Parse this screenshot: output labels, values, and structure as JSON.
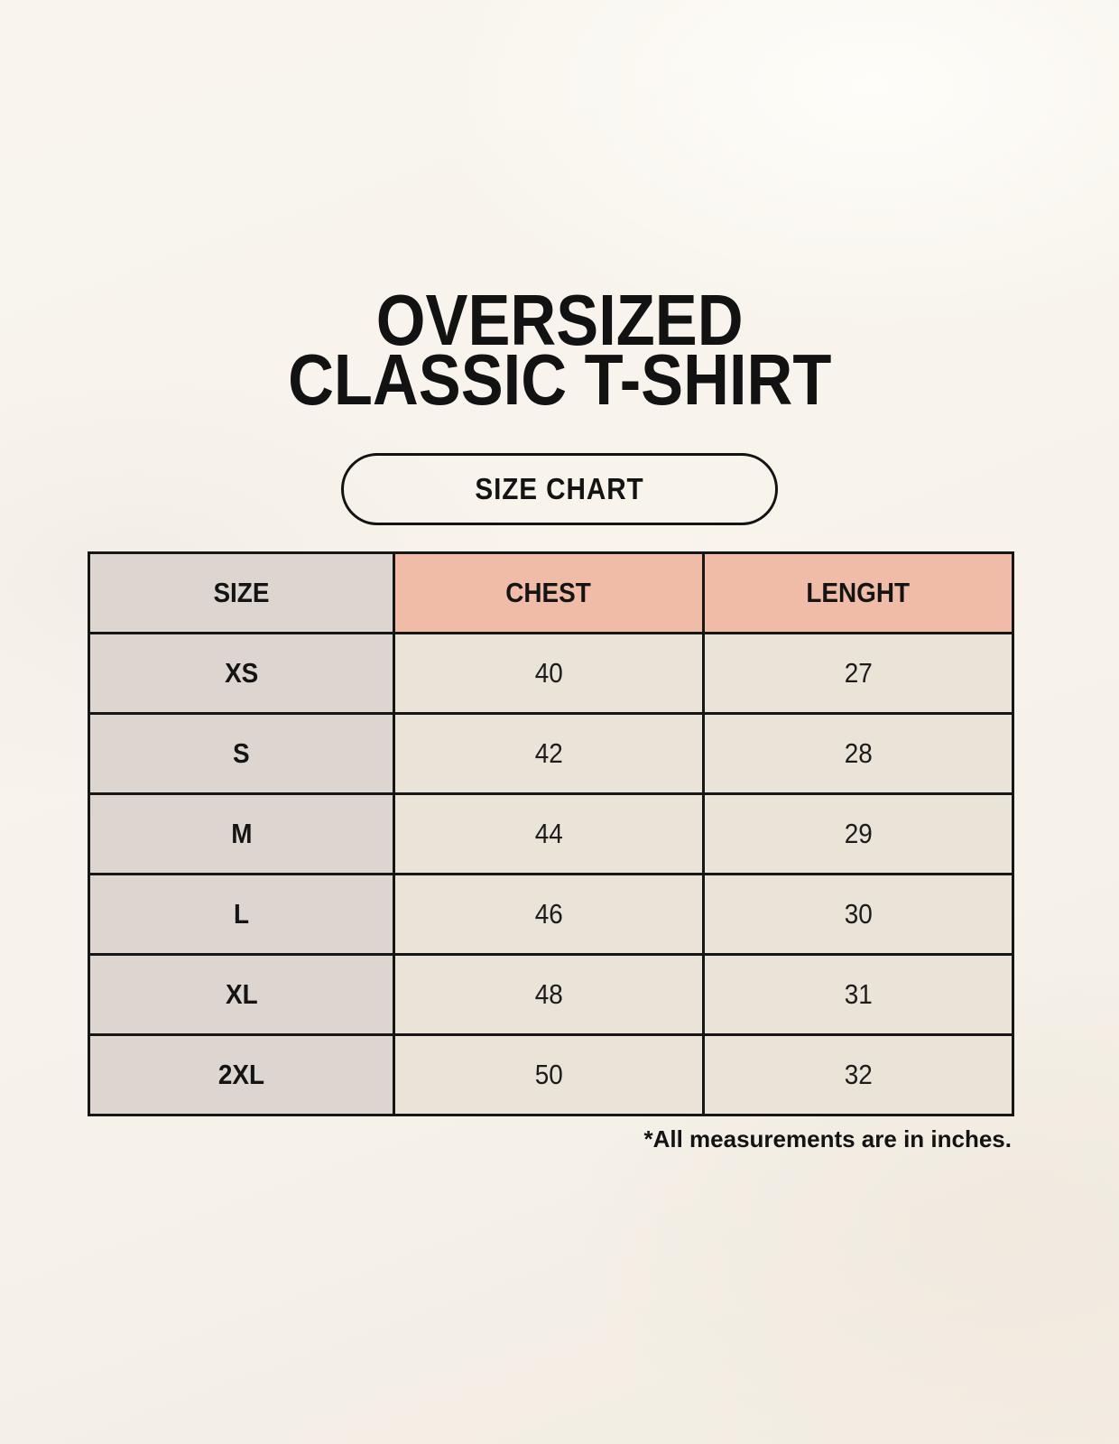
{
  "header": {
    "title_line1": "OVERSIZED",
    "title_line2": "CLASSIC T-SHIRT",
    "badge_label": "SIZE CHART"
  },
  "chart_data": {
    "type": "table",
    "title": "OVERSIZED CLASSIC T-SHIRT",
    "subtitle": "SIZE CHART",
    "columns": [
      "SIZE",
      "CHEST",
      "LENGHT"
    ],
    "rows": [
      [
        "XS",
        "40",
        "27"
      ],
      [
        "S",
        "42",
        "28"
      ],
      [
        "M",
        "44",
        "29"
      ],
      [
        "L",
        "46",
        "30"
      ],
      [
        "XL",
        "48",
        "31"
      ],
      [
        "2XL",
        "50",
        "32"
      ]
    ],
    "units_note": "*All measurements are in inches."
  },
  "colors": {
    "background": "#f7f3ec",
    "header_accent": "#f0bca8",
    "size_column": "#ddd6d0",
    "data_cell": "#eae3d8",
    "border": "#161616",
    "text": "#141414"
  }
}
